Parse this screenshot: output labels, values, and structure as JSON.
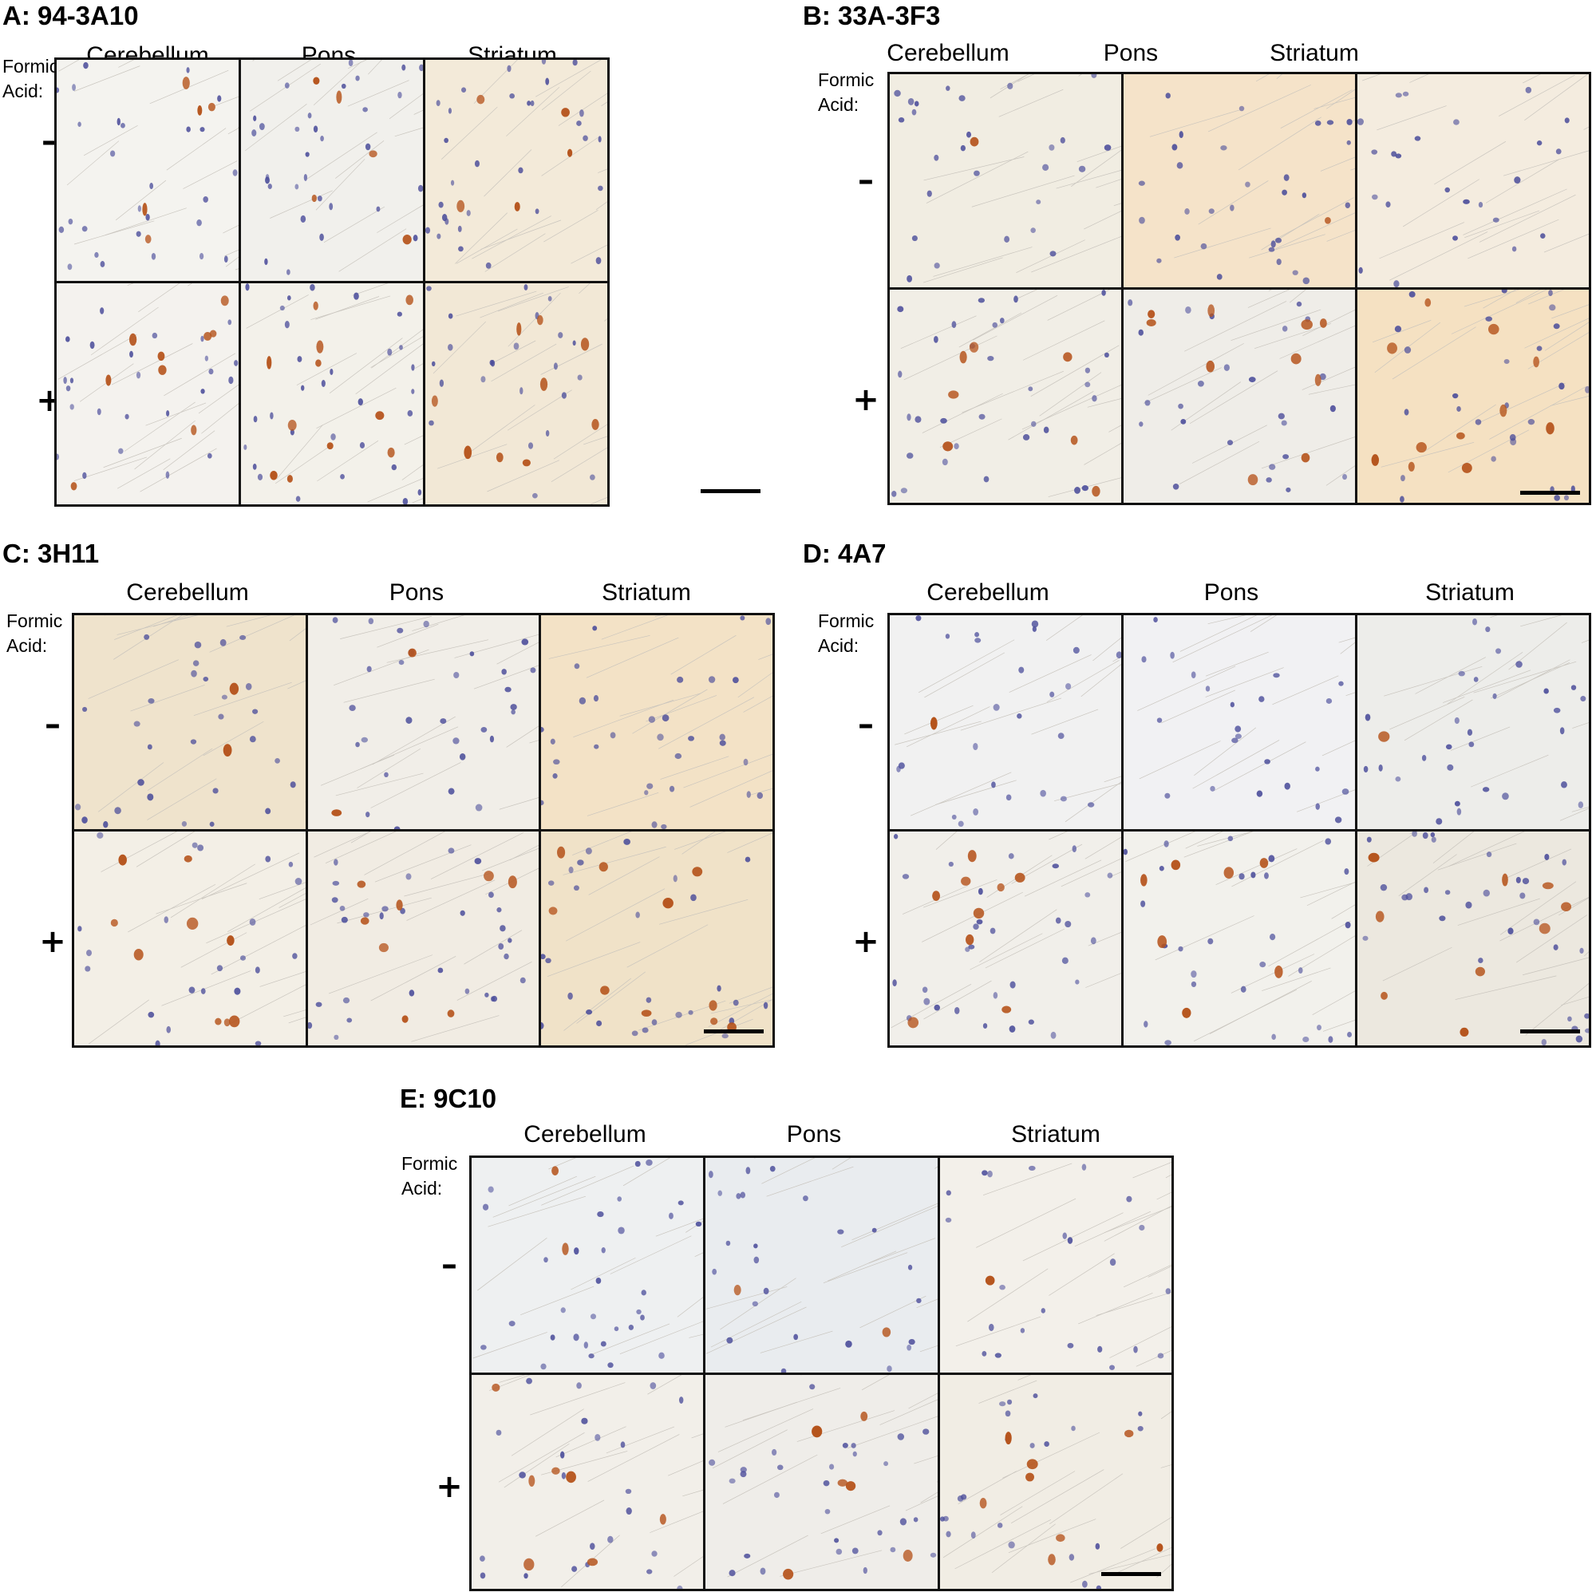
{
  "figure": {
    "columns": [
      "Cerebellum",
      "Pons",
      "Striatum"
    ],
    "row_label_line1": "Formic",
    "row_label_line2": "Acid:",
    "row_signs": [
      "–",
      "+"
    ],
    "panels": [
      {
        "id": "A",
        "title": "A: 94-3A10"
      },
      {
        "id": "B",
        "title": "B: 33A-3F3"
      },
      {
        "id": "C",
        "title": "C: 3H11"
      },
      {
        "id": "D",
        "title": "D: 4A7"
      },
      {
        "id": "E",
        "title": "E: 9C10"
      }
    ]
  },
  "tile_styles": {
    "A": [
      [
        "#f4f3ef",
        "#f1f0ec",
        "#f3ead9"
      ],
      [
        "#f4f2ee",
        "#f3f1ea",
        "#f2e8d6"
      ]
    ],
    "B": [
      [
        "#f1ede2",
        "#f5e3c9",
        "#f4ecdf"
      ],
      [
        "#f1eee6",
        "#efede8",
        "#f5e1c2"
      ]
    ],
    "C": [
      [
        "#efe3cc",
        "#f1eee8",
        "#f3e2c6"
      ],
      [
        "#f3efe6",
        "#f1ece3",
        "#f0e2c8"
      ]
    ],
    "D": [
      [
        "#f1f1f1",
        "#f1f1f3",
        "#ededea"
      ],
      [
        "#f1efea",
        "#f2f1ec",
        "#ece8df"
      ]
    ],
    "E": [
      [
        "#eef0f1",
        "#e9ecef",
        "#f3f0ea"
      ],
      [
        "#f2efe9",
        "#efede9",
        "#f1ede4"
      ]
    ]
  },
  "stain_colors": {
    "nuclei": "#4a4c9a",
    "positive": "#b5531b",
    "fibers": "#c8c4bd"
  }
}
